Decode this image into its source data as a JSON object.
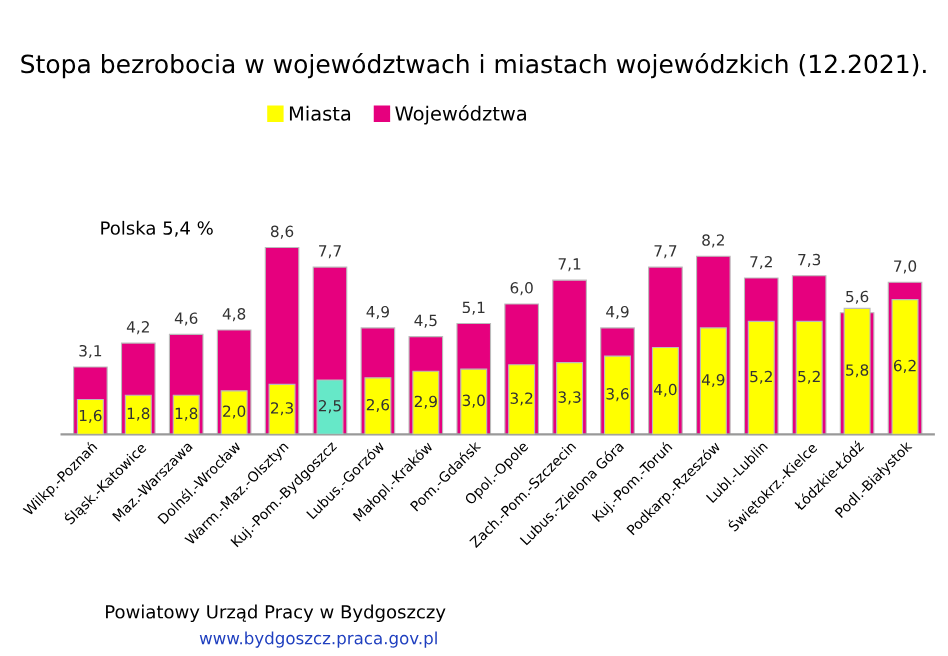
{
  "chart_data": {
    "type": "bar",
    "title": "Stopa bezrobocia w województwach i miastach wojewódzkich (12.2021).",
    "categories": [
      "Wilkp.-Poznań",
      "Śląsk.-Katowice",
      "Maz.-Warszawa",
      "Dolnśl.-Wrocław",
      "Warm.-Maz.-Olsztyn",
      "Kuj.-Pom.-Bydgoszcz",
      "Lubus.-Gorzów",
      "Małopl.-Kraków",
      "Pom.-Gdańsk",
      "Opol.-Opole",
      "Zach.-Pom.-Szczecin",
      "Lubus.-Zielona Góra",
      "Kuj.-Pom.-Toruń",
      "Podkarp.-Rzeszów",
      "Lubl.-Lublin",
      "Świętokrz.-Kielce",
      "Łódzkie-Łódź",
      "Podl.-Białystok"
    ],
    "series": [
      {
        "name": "Województwa",
        "color": "#e6007e",
        "values": [
          3.1,
          4.2,
          4.6,
          4.8,
          8.6,
          7.7,
          4.9,
          4.5,
          5.1,
          6.0,
          7.1,
          4.9,
          7.7,
          8.2,
          7.2,
          7.3,
          5.6,
          7.0
        ],
        "value_labels": [
          "3,1",
          "4,2",
          "4,6",
          "4,8",
          "8,6",
          "7,7",
          "4,9",
          "4,5",
          "5,1",
          "6,0",
          "7,1",
          "4,9",
          "7,7",
          "8,2",
          "7,2",
          "7,3",
          "5,6",
          "7,0"
        ]
      },
      {
        "name": "Miasta",
        "color": "#ffff00",
        "colors": [
          "#ffff00",
          "#ffff00",
          "#ffff00",
          "#ffff00",
          "#ffff00",
          "#66e8c8",
          "#ffff00",
          "#ffff00",
          "#ffff00",
          "#ffff00",
          "#ffff00",
          "#ffff00",
          "#ffff00",
          "#ffff00",
          "#ffff00",
          "#ffff00",
          "#ffff00",
          "#ffff00"
        ],
        "values": [
          1.6,
          1.8,
          1.8,
          2.0,
          2.3,
          2.5,
          2.6,
          2.9,
          3.0,
          3.2,
          3.3,
          3.6,
          4.0,
          4.9,
          5.2,
          5.2,
          5.8,
          6.2
        ],
        "value_labels": [
          "1,6",
          "1,8",
          "1,8",
          "2,0",
          "2,3",
          "2,5",
          "2,6",
          "2,9",
          "3,0",
          "3,2",
          "3,3",
          "3,6",
          "4,0",
          "4,9",
          "5,2",
          "5,2",
          "5,8",
          "6,2"
        ]
      }
    ],
    "legend": "top",
    "annotations": [
      "Polska 5,4 %",
      "Powiatowy Urząd Pracy w Bydgoszczy",
      "www.bydgoszcz.praca.gov.pl"
    ]
  }
}
